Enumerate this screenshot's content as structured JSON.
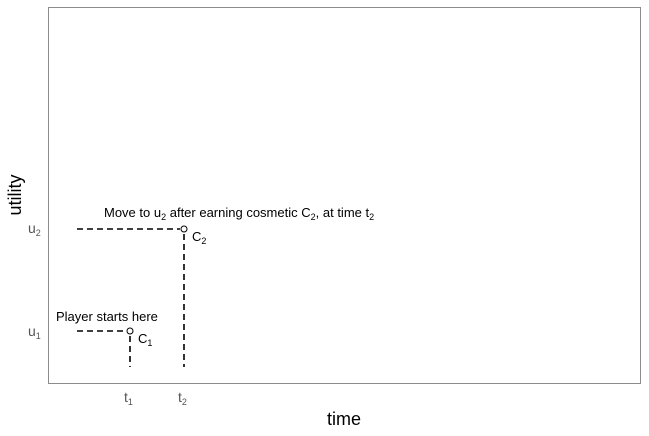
{
  "chart_data": {
    "type": "scatter",
    "xlabel": "time",
    "ylabel": "utility",
    "x_ticks": [
      {
        "base": "t",
        "sub": "1"
      },
      {
        "base": "t",
        "sub": "2"
      }
    ],
    "y_ticks": [
      {
        "base": "u",
        "sub": "1"
      },
      {
        "base": "u",
        "sub": "2"
      }
    ],
    "grid": false,
    "points": [
      {
        "x": "t1",
        "y": "u1",
        "label": {
          "base": "C",
          "sub": "1"
        },
        "annotation": "Player starts here"
      },
      {
        "x": "t2",
        "y": "u2",
        "label": {
          "base": "C",
          "sub": "2"
        },
        "annotation_parts": [
          "Move to u",
          "2",
          " after earning cosmetic C",
          "2",
          ", at time t",
          "2"
        ]
      }
    ],
    "colors": {
      "panel_border": "#8c8c8c",
      "line": "#000000",
      "tick_text": "#555555"
    }
  }
}
